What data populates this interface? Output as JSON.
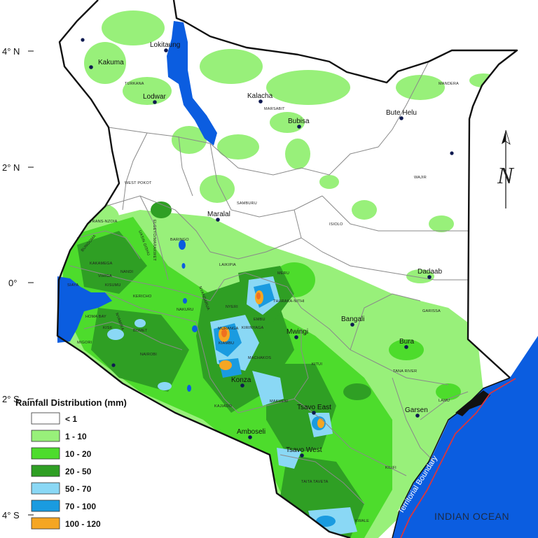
{
  "latitude_labels": [
    "4° N",
    "2° N",
    "0°",
    "2° S",
    "4° S"
  ],
  "towns": [
    "Lokitaung",
    "Kakuma",
    "Lodwar",
    "Kalacha",
    "Bubisa",
    "Bute Helu",
    "Maralal",
    "Dadaab",
    "Bangali",
    "Mwingi",
    "Bura",
    "Konza",
    "Garsen",
    "Tsavo East",
    "Amboseli",
    "Tsavo West"
  ],
  "counties": [
    "TURKANA",
    "MARSABIT",
    "MANDERA",
    "WAJIR",
    "WEST POKOT",
    "SAMBURU",
    "ISIOLO",
    "TRANS-NZOIA",
    "ELGEYO/MARAKWET",
    "BARINGO",
    "UASIN GISHU",
    "BUNGOMA",
    "KAKAMEGA",
    "NANDI",
    "SIAYA",
    "VIHIGA",
    "KISUMU",
    "KERICHO",
    "LAIKIPIA",
    "MERU",
    "NYANDARUA",
    "NYERI",
    "THARAKA-NITHI",
    "NAKURU",
    "HOMA BAY",
    "KISII",
    "NYAMIRA",
    "MIGORI",
    "BOMET",
    "EMBU",
    "MURANGA",
    "KIRINYAGA",
    "KIAMBU",
    "NAIROBI",
    "MACHAKOS",
    "KITUI",
    "GARISSA",
    "TANA RIVER",
    "LAMU",
    "KAJIADO",
    "MAKUENI",
    "TAITA TAVETA",
    "KILIFI",
    "KWALE"
  ],
  "ocean_label": "INDIAN OCEAN",
  "boundary_label": "Territorial Boundary",
  "north_arrow": "N",
  "legend": {
    "title": "Rainfall Distribution (mm)",
    "classes": [
      {
        "label": "< 1",
        "color": "#ffffff"
      },
      {
        "label": "1 - 10",
        "color": "#98f07a"
      },
      {
        "label": "10 - 20",
        "color": "#4ddc2c"
      },
      {
        "label": "20 - 50",
        "color": "#2f9f24"
      },
      {
        "label": "50 - 70",
        "color": "#8ad8f5"
      },
      {
        "label": "70 - 100",
        "color": "#1a9be0"
      },
      {
        "label": "100 - 120",
        "color": "#f5a623"
      }
    ]
  },
  "colors": {
    "ocean": "#0b5de0",
    "lake": "#0b5de0",
    "border": "#111111",
    "county_line": "#8a8a8a",
    "boundary": "#d9363e",
    "high_rain": "#f07020"
  }
}
